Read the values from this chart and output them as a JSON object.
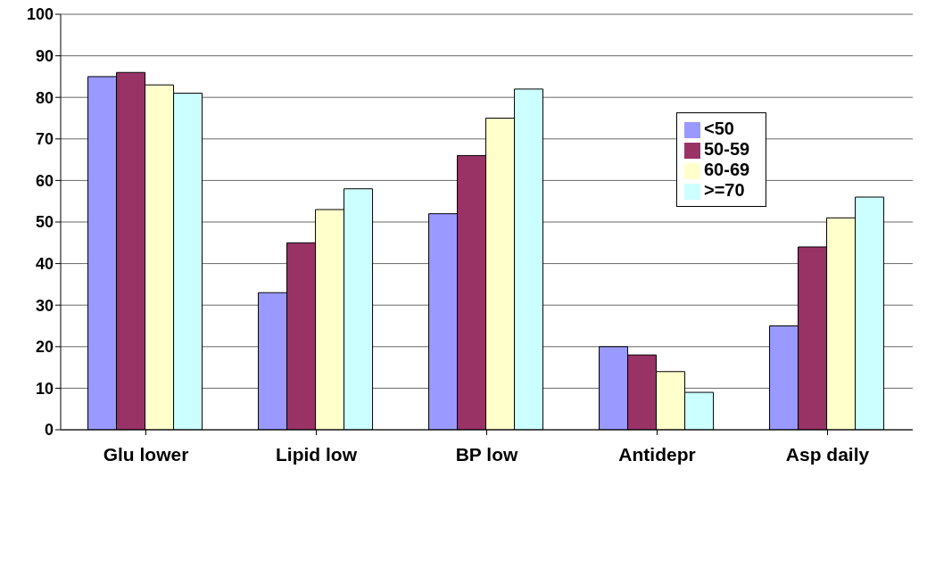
{
  "chart_data": {
    "type": "bar",
    "categories": [
      "Glu lower",
      "Lipid low",
      "BP low",
      "Antidepr",
      "Asp daily"
    ],
    "series": [
      {
        "name": "<50",
        "color": "#9999ff",
        "values": [
          85,
          33,
          52,
          20,
          25
        ]
      },
      {
        "name": "50-59",
        "color": "#993366",
        "values": [
          86,
          45,
          66,
          18,
          44
        ]
      },
      {
        "name": "60-69",
        "color": "#ffffcc",
        "values": [
          83,
          53,
          75,
          14,
          51
        ]
      },
      {
        "name": ">=70",
        "color": "#ccffff",
        "values": [
          81,
          58,
          82,
          9,
          56
        ]
      }
    ],
    "ylim": [
      0,
      100
    ],
    "yticks": [
      0,
      10,
      20,
      30,
      40,
      50,
      60,
      70,
      80,
      90,
      100
    ],
    "grid": "y",
    "legend": "top right"
  }
}
